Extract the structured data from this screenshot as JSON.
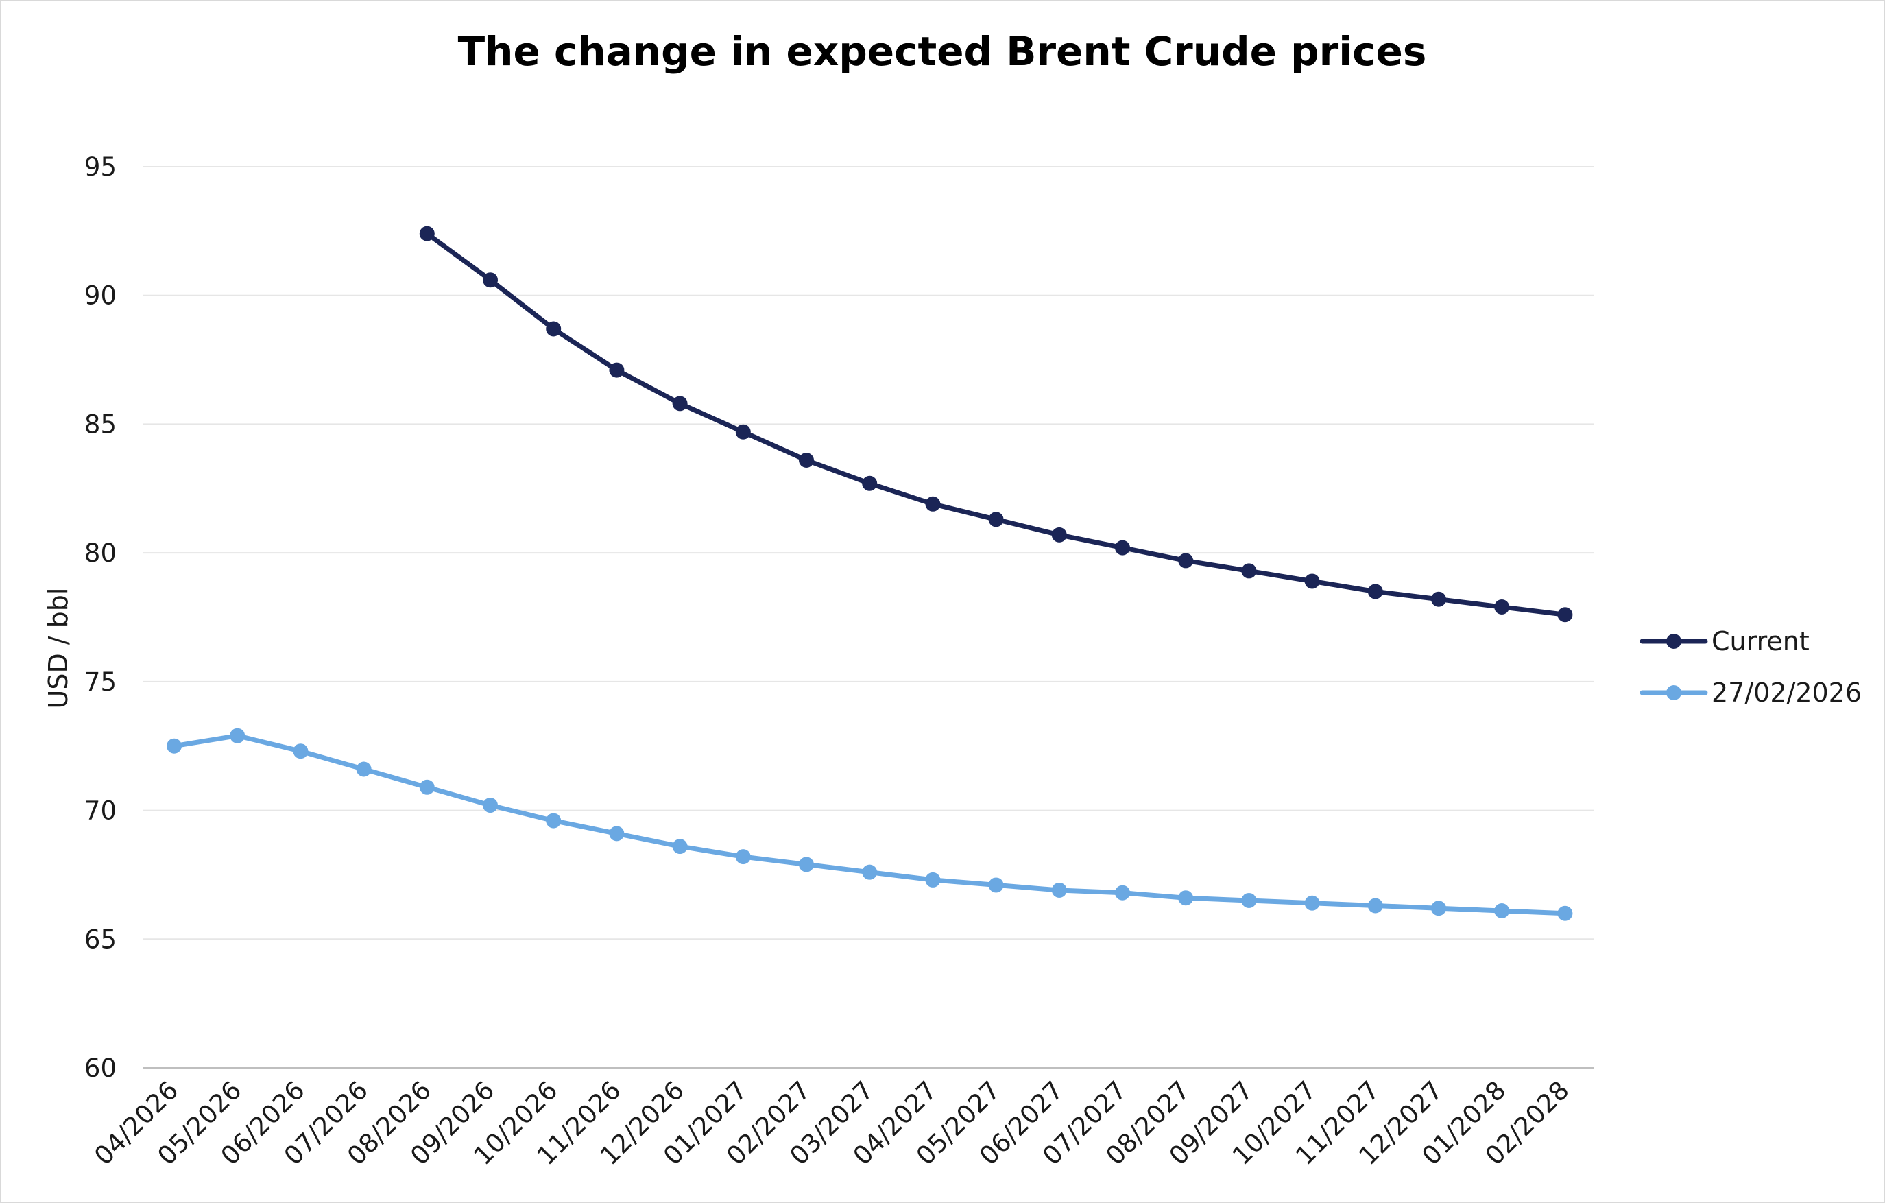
{
  "chart_data": {
    "type": "line",
    "title": "The change in expected Brent Crude prices",
    "xlabel": "",
    "ylabel": "USD / bbl",
    "ylim": [
      60,
      95
    ],
    "yticks": [
      60,
      65,
      70,
      75,
      80,
      85,
      90,
      95
    ],
    "grid": true,
    "legend_position": "right",
    "categories": [
      "04/2026",
      "05/2026",
      "06/2026",
      "07/2026",
      "08/2026",
      "09/2026",
      "10/2026",
      "11/2026",
      "12/2026",
      "01/2027",
      "02/2027",
      "03/2027",
      "04/2027",
      "05/2027",
      "06/2027",
      "07/2027",
      "08/2027",
      "09/2027",
      "10/2027",
      "11/2027",
      "12/2027",
      "01/2028",
      "02/2028"
    ],
    "series": [
      {
        "name": "Current",
        "color": "#1b2556",
        "values": [
          null,
          null,
          null,
          null,
          92.4,
          90.6,
          88.7,
          87.1,
          85.8,
          84.7,
          83.6,
          82.7,
          81.9,
          81.3,
          80.7,
          80.2,
          79.7,
          79.3,
          78.9,
          78.5,
          78.2,
          77.9,
          77.6
        ]
      },
      {
        "name": "27/02/2026",
        "color": "#6aa8e2",
        "values": [
          72.5,
          72.9,
          72.3,
          71.6,
          70.9,
          70.2,
          69.6,
          69.1,
          68.6,
          68.2,
          67.9,
          67.6,
          67.3,
          67.1,
          66.9,
          66.8,
          66.6,
          66.5,
          66.4,
          66.3,
          66.2,
          66.1,
          66.0
        ]
      }
    ]
  }
}
